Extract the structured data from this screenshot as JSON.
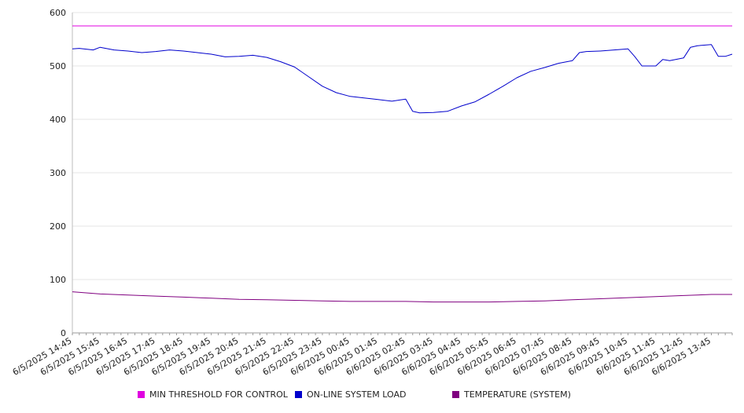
{
  "chart_data": {
    "type": "line",
    "title": "",
    "xlabel": "",
    "ylabel": "",
    "ylim": [
      0,
      600
    ],
    "yticks": [
      0,
      100,
      200,
      300,
      400,
      500,
      600
    ],
    "grid": true,
    "legend_position": "bottom",
    "x_tick_labels": [
      "6/5/2025 14:45",
      "6/5/2025 15:45",
      "6/5/2025 16:45",
      "6/5/2025 17:45",
      "6/5/2025 18:45",
      "6/5/2025 19:45",
      "6/5/2025 20:45",
      "6/5/2025 21:45",
      "6/5/2025 22:45",
      "6/5/2025 23:45",
      "6/6/2025 00:45",
      "6/6/2025 01:45",
      "6/6/2025 02:45",
      "6/6/2025 03:45",
      "6/6/2025 04:45",
      "6/6/2025 05:45",
      "6/6/2025 06:45",
      "6/6/2025 07:45",
      "6/6/2025 08:45",
      "6/6/2025 09:45",
      "6/6/2025 10:45",
      "6/6/2025 11:45",
      "6/6/2025 12:45",
      "6/6/2025 13:45"
    ],
    "series": [
      {
        "name": "MIN THRESHOLD FOR CONTROL",
        "color": "#e000e0",
        "x": [
          "6/5/2025 14:45",
          "6/6/2025 14:30"
        ],
        "values": [
          575,
          575
        ]
      },
      {
        "name": "ON-LINE SYSTEM LOAD",
        "color": "#0000cc",
        "x": [
          "6/5/2025 14:45",
          "6/5/2025 15:00",
          "6/5/2025 15:30",
          "6/5/2025 15:45",
          "6/5/2025 16:15",
          "6/5/2025 16:45",
          "6/5/2025 17:15",
          "6/5/2025 17:45",
          "6/5/2025 18:15",
          "6/5/2025 18:45",
          "6/5/2025 19:15",
          "6/5/2025 19:45",
          "6/5/2025 20:15",
          "6/5/2025 20:45",
          "6/5/2025 21:15",
          "6/5/2025 21:45",
          "6/5/2025 22:15",
          "6/5/2025 22:45",
          "6/5/2025 23:15",
          "6/5/2025 23:45",
          "6/6/2025 00:15",
          "6/6/2025 00:45",
          "6/6/2025 01:15",
          "6/6/2025 01:45",
          "6/6/2025 02:15",
          "6/6/2025 02:45",
          "6/6/2025 03:00",
          "6/6/2025 03:15",
          "6/6/2025 03:45",
          "6/6/2025 04:15",
          "6/6/2025 04:45",
          "6/6/2025 05:15",
          "6/6/2025 05:45",
          "6/6/2025 06:15",
          "6/6/2025 06:45",
          "6/6/2025 07:15",
          "6/6/2025 07:45",
          "6/6/2025 08:15",
          "6/6/2025 08:45",
          "6/6/2025 09:00",
          "6/6/2025 09:15",
          "6/6/2025 09:45",
          "6/6/2025 10:15",
          "6/6/2025 10:45",
          "6/6/2025 11:00",
          "6/6/2025 11:15",
          "6/6/2025 11:45",
          "6/6/2025 12:00",
          "6/6/2025 12:15",
          "6/6/2025 12:45",
          "6/6/2025 13:00",
          "6/6/2025 13:15",
          "6/6/2025 13:45",
          "6/6/2025 14:00",
          "6/6/2025 14:15",
          "6/6/2025 14:30"
        ],
        "values": [
          532,
          533,
          530,
          535,
          530,
          528,
          525,
          527,
          530,
          528,
          525,
          522,
          517,
          518,
          520,
          516,
          508,
          498,
          480,
          462,
          450,
          443,
          440,
          437,
          434,
          438,
          415,
          412,
          413,
          415,
          425,
          433,
          447,
          462,
          478,
          490,
          497,
          505,
          510,
          525,
          527,
          528,
          530,
          532,
          517,
          500,
          500,
          512,
          510,
          515,
          535,
          538,
          540,
          518,
          518,
          522
        ]
      },
      {
        "name": "TEMPERATURE (SYSTEM)",
        "color": "#800080",
        "x": [
          "6/5/2025 14:45",
          "6/5/2025 15:45",
          "6/5/2025 16:45",
          "6/5/2025 17:45",
          "6/5/2025 18:45",
          "6/5/2025 19:45",
          "6/5/2025 20:45",
          "6/5/2025 21:45",
          "6/5/2025 22:45",
          "6/5/2025 23:45",
          "6/6/2025 00:45",
          "6/6/2025 01:45",
          "6/6/2025 02:45",
          "6/6/2025 03:45",
          "6/6/2025 04:45",
          "6/6/2025 05:45",
          "6/6/2025 06:45",
          "6/6/2025 07:45",
          "6/6/2025 08:45",
          "6/6/2025 09:45",
          "6/6/2025 10:45",
          "6/6/2025 11:45",
          "6/6/2025 12:45",
          "6/6/2025 13:45",
          "6/6/2025 14:30"
        ],
        "values": [
          77,
          73,
          71,
          69,
          67,
          65,
          63,
          62,
          61,
          60,
          59,
          59,
          59,
          58,
          58,
          58,
          59,
          60,
          62,
          64,
          66,
          68,
          70,
          72,
          72
        ]
      }
    ]
  }
}
